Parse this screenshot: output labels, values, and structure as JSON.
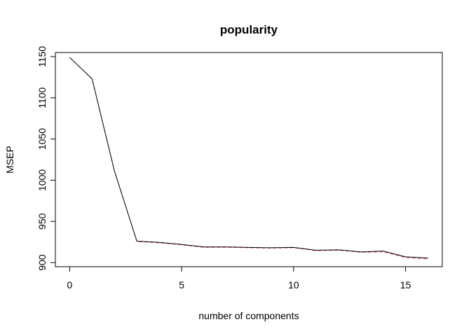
{
  "chart_data": {
    "type": "line",
    "title": "popularity",
    "xlabel": "number of components",
    "ylabel": "MSEP",
    "xlim": [
      -0.64,
      16.64
    ],
    "ylim": [
      895,
      1155
    ],
    "x_ticks": [
      0,
      5,
      10,
      15
    ],
    "x_tick_labels": [
      "0",
      "5",
      "10",
      "15"
    ],
    "y_ticks": [
      900,
      950,
      1000,
      1050,
      1100,
      1150
    ],
    "y_tick_labels": [
      "900",
      "950",
      "1000",
      "1050",
      "1100",
      "1150"
    ],
    "grid": false,
    "x": [
      0,
      1,
      2,
      3,
      4,
      5,
      6,
      7,
      8,
      9,
      10,
      11,
      12,
      13,
      14,
      15,
      16
    ],
    "series": [
      {
        "color": "#000000",
        "line_style": "solid",
        "values": [
          1149,
          1123,
          1011,
          926,
          924.5,
          922,
          919,
          919,
          918.5,
          918,
          918.5,
          915,
          915.5,
          913,
          914,
          907,
          905.5
        ]
      },
      {
        "color": "#df536b",
        "line_style": "dashed",
        "values": [
          1149,
          1123,
          1011,
          925.5,
          924,
          921.5,
          918.5,
          918.5,
          918,
          917.5,
          918,
          914.5,
          915,
          912.5,
          913,
          906,
          904.5
        ]
      }
    ]
  }
}
